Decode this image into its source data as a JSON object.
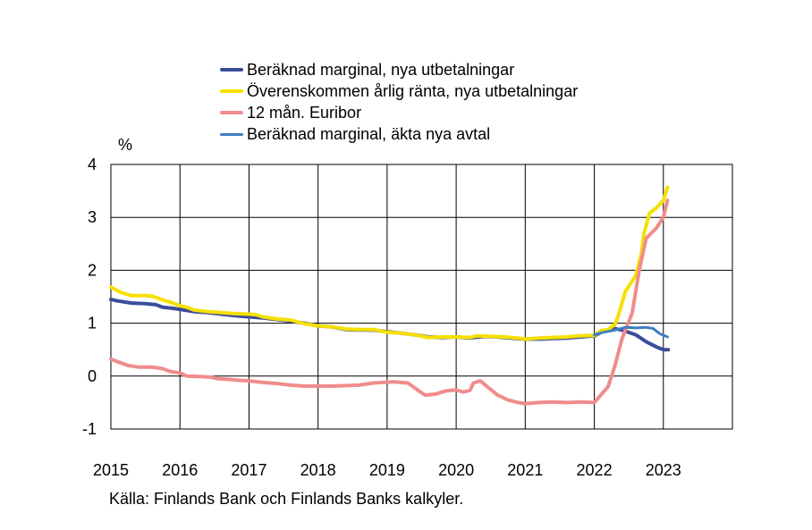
{
  "chart_data": {
    "type": "line",
    "unit_label": "%",
    "source": "Källa: Finlands Bank och Finlands Banks kalkyler.",
    "ylim": [
      -1,
      4
    ],
    "yticks": [
      -1,
      0,
      1,
      2,
      3,
      4
    ],
    "xlim": [
      2015,
      2024
    ],
    "xticks": [
      2015,
      2016,
      2017,
      2018,
      2019,
      2020,
      2021,
      2022,
      2023
    ],
    "grid": true,
    "legend_position": "top",
    "series": [
      {
        "name": "Beräknad marginal, nya utbetalningar",
        "color": "#3a4d9a",
        "width": 4,
        "points": [
          [
            2015.0,
            1.45
          ],
          [
            2015.1,
            1.42
          ],
          [
            2015.3,
            1.38
          ],
          [
            2015.5,
            1.37
          ],
          [
            2015.65,
            1.35
          ],
          [
            2015.75,
            1.3
          ],
          [
            2015.9,
            1.28
          ],
          [
            2016.0,
            1.26
          ],
          [
            2016.2,
            1.22
          ],
          [
            2016.4,
            1.2
          ],
          [
            2016.6,
            1.17
          ],
          [
            2016.8,
            1.14
          ],
          [
            2017.0,
            1.12
          ],
          [
            2017.2,
            1.1
          ],
          [
            2017.4,
            1.07
          ],
          [
            2017.6,
            1.04
          ],
          [
            2017.8,
            1.0
          ],
          [
            2018.0,
            0.95
          ],
          [
            2018.2,
            0.93
          ],
          [
            2018.4,
            0.88
          ],
          [
            2018.6,
            0.87
          ],
          [
            2018.8,
            0.87
          ],
          [
            2019.0,
            0.84
          ],
          [
            2019.2,
            0.81
          ],
          [
            2019.4,
            0.78
          ],
          [
            2019.6,
            0.74
          ],
          [
            2019.8,
            0.73
          ],
          [
            2020.0,
            0.74
          ],
          [
            2020.2,
            0.72
          ],
          [
            2020.4,
            0.75
          ],
          [
            2020.6,
            0.74
          ],
          [
            2020.8,
            0.72
          ],
          [
            2021.0,
            0.7
          ],
          [
            2021.2,
            0.7
          ],
          [
            2021.4,
            0.71
          ],
          [
            2021.6,
            0.72
          ],
          [
            2021.8,
            0.74
          ],
          [
            2022.0,
            0.76
          ],
          [
            2022.1,
            0.83
          ],
          [
            2022.3,
            0.9
          ],
          [
            2022.45,
            0.85
          ],
          [
            2022.6,
            0.78
          ],
          [
            2022.75,
            0.65
          ],
          [
            2022.9,
            0.55
          ],
          [
            2023.0,
            0.5
          ],
          [
            2023.07,
            0.5
          ]
        ]
      },
      {
        "name": "Överenskommen årlig ränta, nya utbetalningar",
        "color": "#f5e000",
        "width": 4,
        "points": [
          [
            2015.0,
            1.68
          ],
          [
            2015.15,
            1.58
          ],
          [
            2015.3,
            1.52
          ],
          [
            2015.5,
            1.52
          ],
          [
            2015.6,
            1.51
          ],
          [
            2015.75,
            1.44
          ],
          [
            2015.9,
            1.38
          ],
          [
            2016.0,
            1.33
          ],
          [
            2016.1,
            1.3
          ],
          [
            2016.2,
            1.25
          ],
          [
            2016.4,
            1.22
          ],
          [
            2016.6,
            1.2
          ],
          [
            2016.8,
            1.18
          ],
          [
            2017.0,
            1.17
          ],
          [
            2017.1,
            1.16
          ],
          [
            2017.2,
            1.12
          ],
          [
            2017.4,
            1.08
          ],
          [
            2017.6,
            1.06
          ],
          [
            2017.8,
            0.99
          ],
          [
            2018.0,
            0.95
          ],
          [
            2018.2,
            0.93
          ],
          [
            2018.4,
            0.89
          ],
          [
            2018.6,
            0.88
          ],
          [
            2018.8,
            0.88
          ],
          [
            2019.0,
            0.83
          ],
          [
            2019.2,
            0.81
          ],
          [
            2019.4,
            0.78
          ],
          [
            2019.6,
            0.73
          ],
          [
            2019.8,
            0.74
          ],
          [
            2020.0,
            0.74
          ],
          [
            2020.2,
            0.73
          ],
          [
            2020.3,
            0.76
          ],
          [
            2020.5,
            0.75
          ],
          [
            2020.7,
            0.74
          ],
          [
            2020.9,
            0.72
          ],
          [
            2021.0,
            0.7
          ],
          [
            2021.2,
            0.72
          ],
          [
            2021.4,
            0.73
          ],
          [
            2021.6,
            0.74
          ],
          [
            2021.8,
            0.76
          ],
          [
            2022.0,
            0.77
          ],
          [
            2022.1,
            0.86
          ],
          [
            2022.2,
            0.88
          ],
          [
            2022.3,
            0.98
          ],
          [
            2022.35,
            1.15
          ],
          [
            2022.45,
            1.6
          ],
          [
            2022.6,
            1.9
          ],
          [
            2022.68,
            2.3
          ],
          [
            2022.72,
            2.7
          ],
          [
            2022.8,
            3.08
          ],
          [
            2022.9,
            3.18
          ],
          [
            2023.0,
            3.32
          ],
          [
            2023.06,
            3.57
          ]
        ]
      },
      {
        "name": "12 mån. Euribor",
        "color": "#f08c8c",
        "width": 4,
        "points": [
          [
            2015.0,
            0.32
          ],
          [
            2015.1,
            0.27
          ],
          [
            2015.25,
            0.2
          ],
          [
            2015.4,
            0.17
          ],
          [
            2015.6,
            0.17
          ],
          [
            2015.75,
            0.14
          ],
          [
            2015.85,
            0.09
          ],
          [
            2016.0,
            0.06
          ],
          [
            2016.1,
            0.0
          ],
          [
            2016.3,
            -0.01
          ],
          [
            2016.45,
            -0.02
          ],
          [
            2016.55,
            -0.05
          ],
          [
            2016.7,
            -0.06
          ],
          [
            2016.85,
            -0.08
          ],
          [
            2017.0,
            -0.09
          ],
          [
            2017.2,
            -0.12
          ],
          [
            2017.4,
            -0.14
          ],
          [
            2017.6,
            -0.17
          ],
          [
            2017.8,
            -0.19
          ],
          [
            2018.0,
            -0.19
          ],
          [
            2018.2,
            -0.19
          ],
          [
            2018.4,
            -0.18
          ],
          [
            2018.6,
            -0.17
          ],
          [
            2018.8,
            -0.13
          ],
          [
            2018.95,
            -0.12
          ],
          [
            2019.1,
            -0.11
          ],
          [
            2019.3,
            -0.13
          ],
          [
            2019.45,
            -0.27
          ],
          [
            2019.55,
            -0.36
          ],
          [
            2019.7,
            -0.34
          ],
          [
            2019.85,
            -0.28
          ],
          [
            2020.0,
            -0.26
          ],
          [
            2020.1,
            -0.3
          ],
          [
            2020.2,
            -0.27
          ],
          [
            2020.25,
            -0.13
          ],
          [
            2020.35,
            -0.09
          ],
          [
            2020.45,
            -0.2
          ],
          [
            2020.6,
            -0.36
          ],
          [
            2020.75,
            -0.45
          ],
          [
            2020.9,
            -0.5
          ],
          [
            2021.0,
            -0.52
          ],
          [
            2021.2,
            -0.5
          ],
          [
            2021.4,
            -0.49
          ],
          [
            2021.6,
            -0.5
          ],
          [
            2021.8,
            -0.49
          ],
          [
            2022.0,
            -0.5
          ],
          [
            2022.1,
            -0.35
          ],
          [
            2022.2,
            -0.2
          ],
          [
            2022.3,
            0.2
          ],
          [
            2022.4,
            0.7
          ],
          [
            2022.55,
            1.2
          ],
          [
            2022.65,
            2.0
          ],
          [
            2022.75,
            2.6
          ],
          [
            2022.9,
            2.8
          ],
          [
            2023.0,
            3.0
          ],
          [
            2023.06,
            3.32
          ]
        ]
      },
      {
        "name": "Beräknad marginal, äkta nya avtal",
        "color": "#3f7fc0",
        "width": 3,
        "points": [
          [
            2022.0,
            0.78
          ],
          [
            2022.1,
            0.82
          ],
          [
            2022.3,
            0.87
          ],
          [
            2022.45,
            0.92
          ],
          [
            2022.6,
            0.91
          ],
          [
            2022.75,
            0.92
          ],
          [
            2022.85,
            0.9
          ],
          [
            2022.95,
            0.8
          ],
          [
            2023.06,
            0.74
          ]
        ]
      }
    ]
  }
}
